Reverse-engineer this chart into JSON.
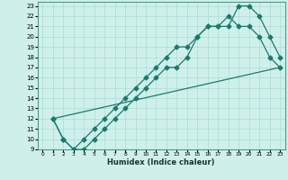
{
  "xlabel": "Humidex (Indice chaleur)",
  "bg_color": "#cff0ea",
  "grid_color": "#a8ddd8",
  "line_color": "#1a7a6e",
  "xlim": [
    -0.5,
    23.5
  ],
  "ylim": [
    9,
    23.4
  ],
  "xticks": [
    0,
    1,
    2,
    3,
    4,
    5,
    6,
    7,
    8,
    9,
    10,
    11,
    12,
    13,
    14,
    15,
    16,
    17,
    18,
    19,
    20,
    21,
    22,
    23
  ],
  "yticks": [
    9,
    10,
    11,
    12,
    13,
    14,
    15,
    16,
    17,
    18,
    19,
    20,
    21,
    22,
    23
  ],
  "curve1_x": [
    1,
    2,
    3,
    4,
    5,
    6,
    7,
    8,
    9,
    10,
    11,
    12,
    13,
    14,
    15,
    16,
    17,
    18,
    19,
    20,
    21,
    22,
    23
  ],
  "curve1_y": [
    12,
    10,
    9,
    10,
    11,
    12,
    13,
    14,
    15,
    16,
    17,
    18,
    19,
    19,
    20,
    21,
    21,
    21,
    23,
    23,
    22,
    20,
    18
  ],
  "curve2_x": [
    1,
    2,
    3,
    4,
    5,
    6,
    7,
    8,
    9,
    10,
    11,
    12,
    13,
    14,
    15,
    16,
    17,
    18,
    19,
    20,
    21,
    22,
    23
  ],
  "curve2_y": [
    12,
    10,
    9,
    9,
    10,
    11,
    12,
    13,
    14,
    15,
    16,
    17,
    17,
    18,
    20,
    21,
    21,
    22,
    21,
    21,
    20,
    18,
    17
  ],
  "line3_x": [
    1,
    23
  ],
  "line3_y": [
    12,
    17
  ]
}
